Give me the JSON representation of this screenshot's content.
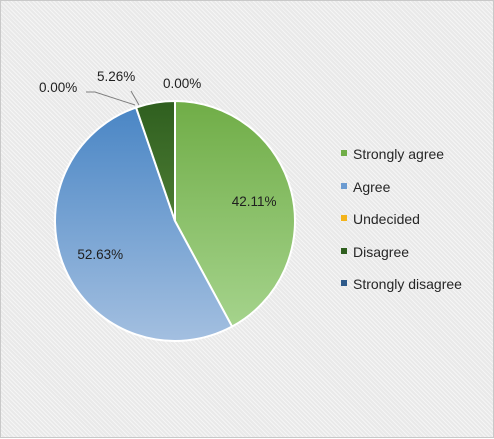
{
  "chart_data": {
    "type": "pie",
    "title": "",
    "legend_position": "right",
    "start_angle": "12 o'clock",
    "direction": "clockwise",
    "series": [
      {
        "name": "Strongly agree",
        "value": 42.11,
        "label": "42.11%",
        "color": "#70ad47",
        "color_light": "#a5d38c",
        "label_placement": "inside"
      },
      {
        "name": "Agree",
        "value": 52.63,
        "label": "52.63%",
        "color": "#4a86c5",
        "color_light": "#a3bfe0",
        "label_placement": "inside"
      },
      {
        "name": "Undecided",
        "value": 0.0,
        "label": "0.00%",
        "color": "#f4b41b",
        "color_light": "#f8d37a",
        "label_placement": "callout"
      },
      {
        "name": "Disagree",
        "value": 5.26,
        "label": "5.26%",
        "color": "#2f5f1f",
        "color_light": "#4d7c34",
        "label_placement": "callout"
      },
      {
        "name": "Strongly disagree",
        "value": 0.0,
        "label": "0.00%",
        "color": "#2e5a8a",
        "color_light": "#4a7ab0",
        "label_placement": "callout"
      }
    ],
    "legend": [
      {
        "label": "Strongly agree",
        "color": "#70ad47"
      },
      {
        "label": "Agree",
        "color": "#6b9bd1"
      },
      {
        "label": "Undecided",
        "color": "#f4b41b"
      },
      {
        "label": "Disagree",
        "color": "#2f5f1f"
      },
      {
        "label": "Strongly disagree",
        "color": "#2e5a8a"
      }
    ]
  }
}
